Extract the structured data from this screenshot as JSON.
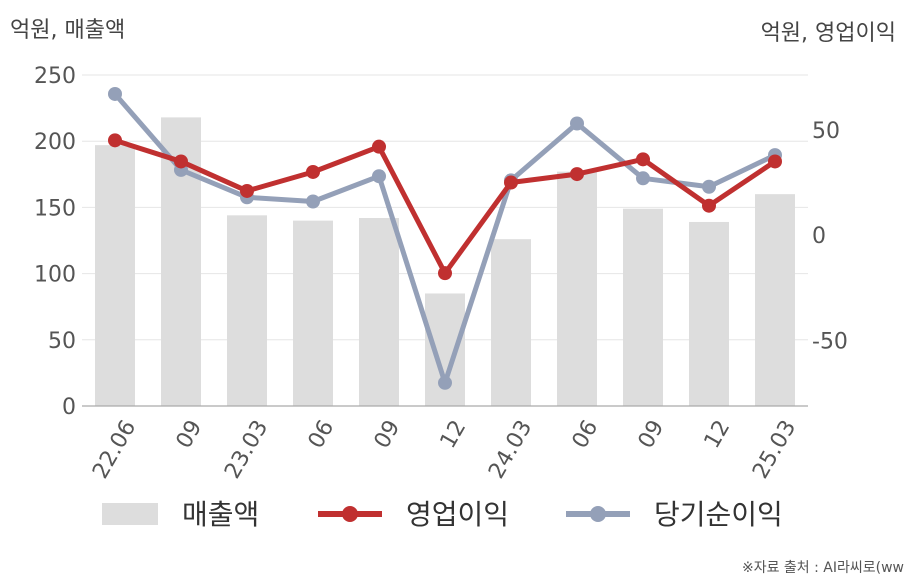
{
  "chart_data": {
    "type": "bar+line",
    "left_axis_title": "억원, 매출액",
    "right_axis_title": "억원, 영업이익",
    "categories": [
      "22.06",
      "09",
      "23.03",
      "06",
      "09",
      "12",
      "24.03",
      "06",
      "09",
      "12",
      "25.03"
    ],
    "left_axis": {
      "ylim": [
        0,
        250
      ],
      "ticks": [
        0,
        50,
        100,
        150,
        200,
        250
      ]
    },
    "right_axis": {
      "ylim": [
        -81,
        76
      ],
      "ticks": [
        -50,
        0,
        50
      ]
    },
    "grid": true,
    "legend_position": "bottom",
    "series": [
      {
        "name": "매출액",
        "kind": "bar",
        "axis": "left",
        "color": "#dddddd",
        "values": [
          197,
          218,
          144,
          140,
          142,
          85,
          126,
          177,
          149,
          139,
          160
        ]
      },
      {
        "name": "영업이익",
        "kind": "line",
        "axis": "right",
        "color": "#c03030",
        "values": [
          45,
          35,
          21,
          30,
          42,
          -18,
          25,
          29,
          36,
          14,
          35
        ]
      },
      {
        "name": "당기순이익",
        "kind": "line",
        "axis": "right",
        "color": "#94a0b8",
        "values": [
          67,
          31,
          18,
          16,
          28,
          -70,
          26,
          53,
          27,
          23,
          38
        ]
      }
    ],
    "source": "※자료 출처 : AI라씨로(ww"
  }
}
